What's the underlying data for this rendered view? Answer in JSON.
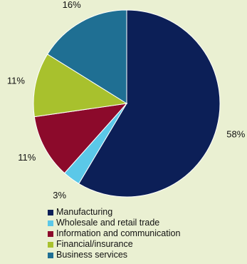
{
  "chart_data": {
    "type": "pie",
    "title": "",
    "start": "12 o'clock",
    "direction": "clockwise",
    "slices": [
      {
        "label": "Manufacturing",
        "value": 58,
        "display": "58%",
        "color": "#0c1f57"
      },
      {
        "label": "Wholesale and retail trade",
        "value": 3,
        "display": "3%",
        "color": "#5bc8e8"
      },
      {
        "label": "Information and communication",
        "value": 11,
        "display": "11%",
        "color": "#8c0a2b"
      },
      {
        "label": "Financial/insurance",
        "value": 11,
        "display": "11%",
        "color": "#a8c12d"
      },
      {
        "label": "Business services",
        "value": 16,
        "display": "16%",
        "color": "#1f6f93"
      }
    ],
    "legend_placement": "bottom",
    "background": "#eaf0d2"
  }
}
